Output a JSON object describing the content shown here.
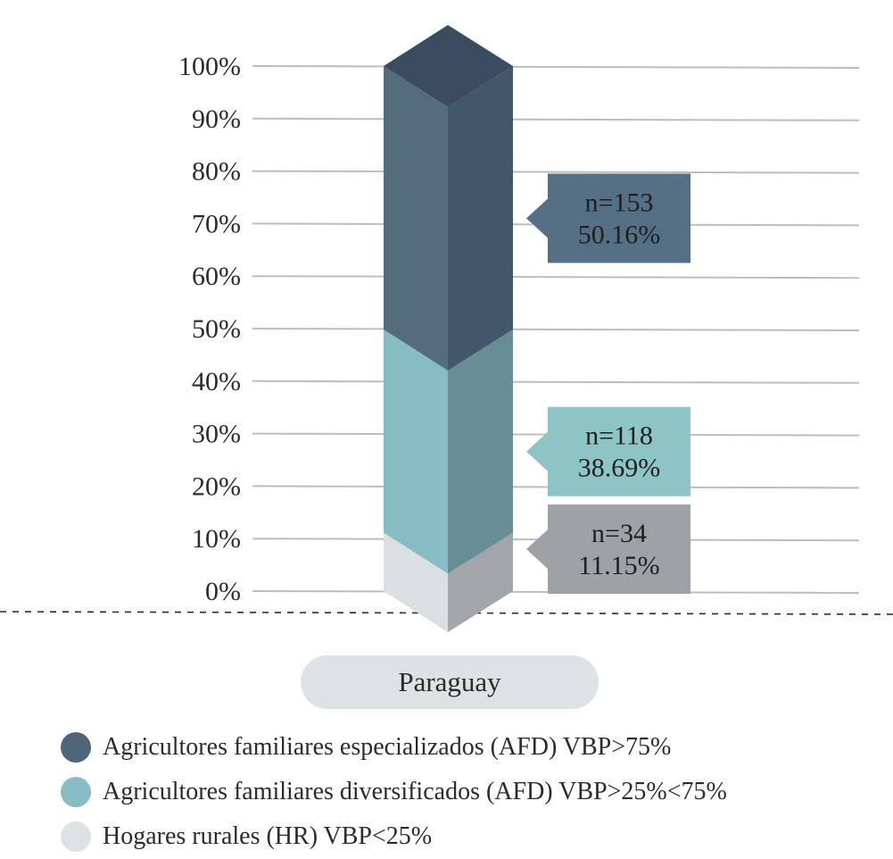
{
  "chart_data": {
    "type": "bar",
    "stacked": true,
    "categories": [
      "Paraguay"
    ],
    "y_ticks": [
      "0%",
      "10%",
      "20%",
      "30%",
      "40%",
      "50%",
      "60%",
      "70%",
      "80%",
      "90%",
      "100%"
    ],
    "ylim": [
      0,
      100
    ],
    "grid": true,
    "series": [
      {
        "name": "Hogares rurales (HR) VBP<25%",
        "n_label": "n=34",
        "pct_label": "11.15%",
        "values": [
          11.15
        ],
        "color_front": "#dadfe1",
        "color_side": "#a2a6aa",
        "color_callout": "#9ea1a5"
      },
      {
        "name": "Agricultores familiares diversificados (AFD) VBP>25%<75%",
        "n_label": "n=118",
        "pct_label": "38.69%",
        "values": [
          38.69
        ],
        "color_front": "#88bcc4",
        "color_side": "#688d96",
        "color_callout": "#8ec4c6"
      },
      {
        "name": "Agricultores familiares especializados (AFD) VBP>75%",
        "n_label": "n=153",
        "pct_label": "50.16%",
        "values": [
          50.16
        ],
        "color_front": "#546d7e",
        "color_side": "#43576a",
        "color_callout": "#556f84",
        "color_top": "#3b4b60"
      }
    ]
  },
  "legend": [
    {
      "label": "Agricultores familiares especializados (AFD) VBP>75%",
      "color": "#4f6678"
    },
    {
      "label": "Agricultores familiares diversificados (AFD) VBP>25%<75%",
      "color": "#88bcc4"
    },
    {
      "label": "Hogares rurales (HR) VBP<25%",
      "color": "#dde2e4"
    }
  ],
  "category_label": "Paraguay"
}
